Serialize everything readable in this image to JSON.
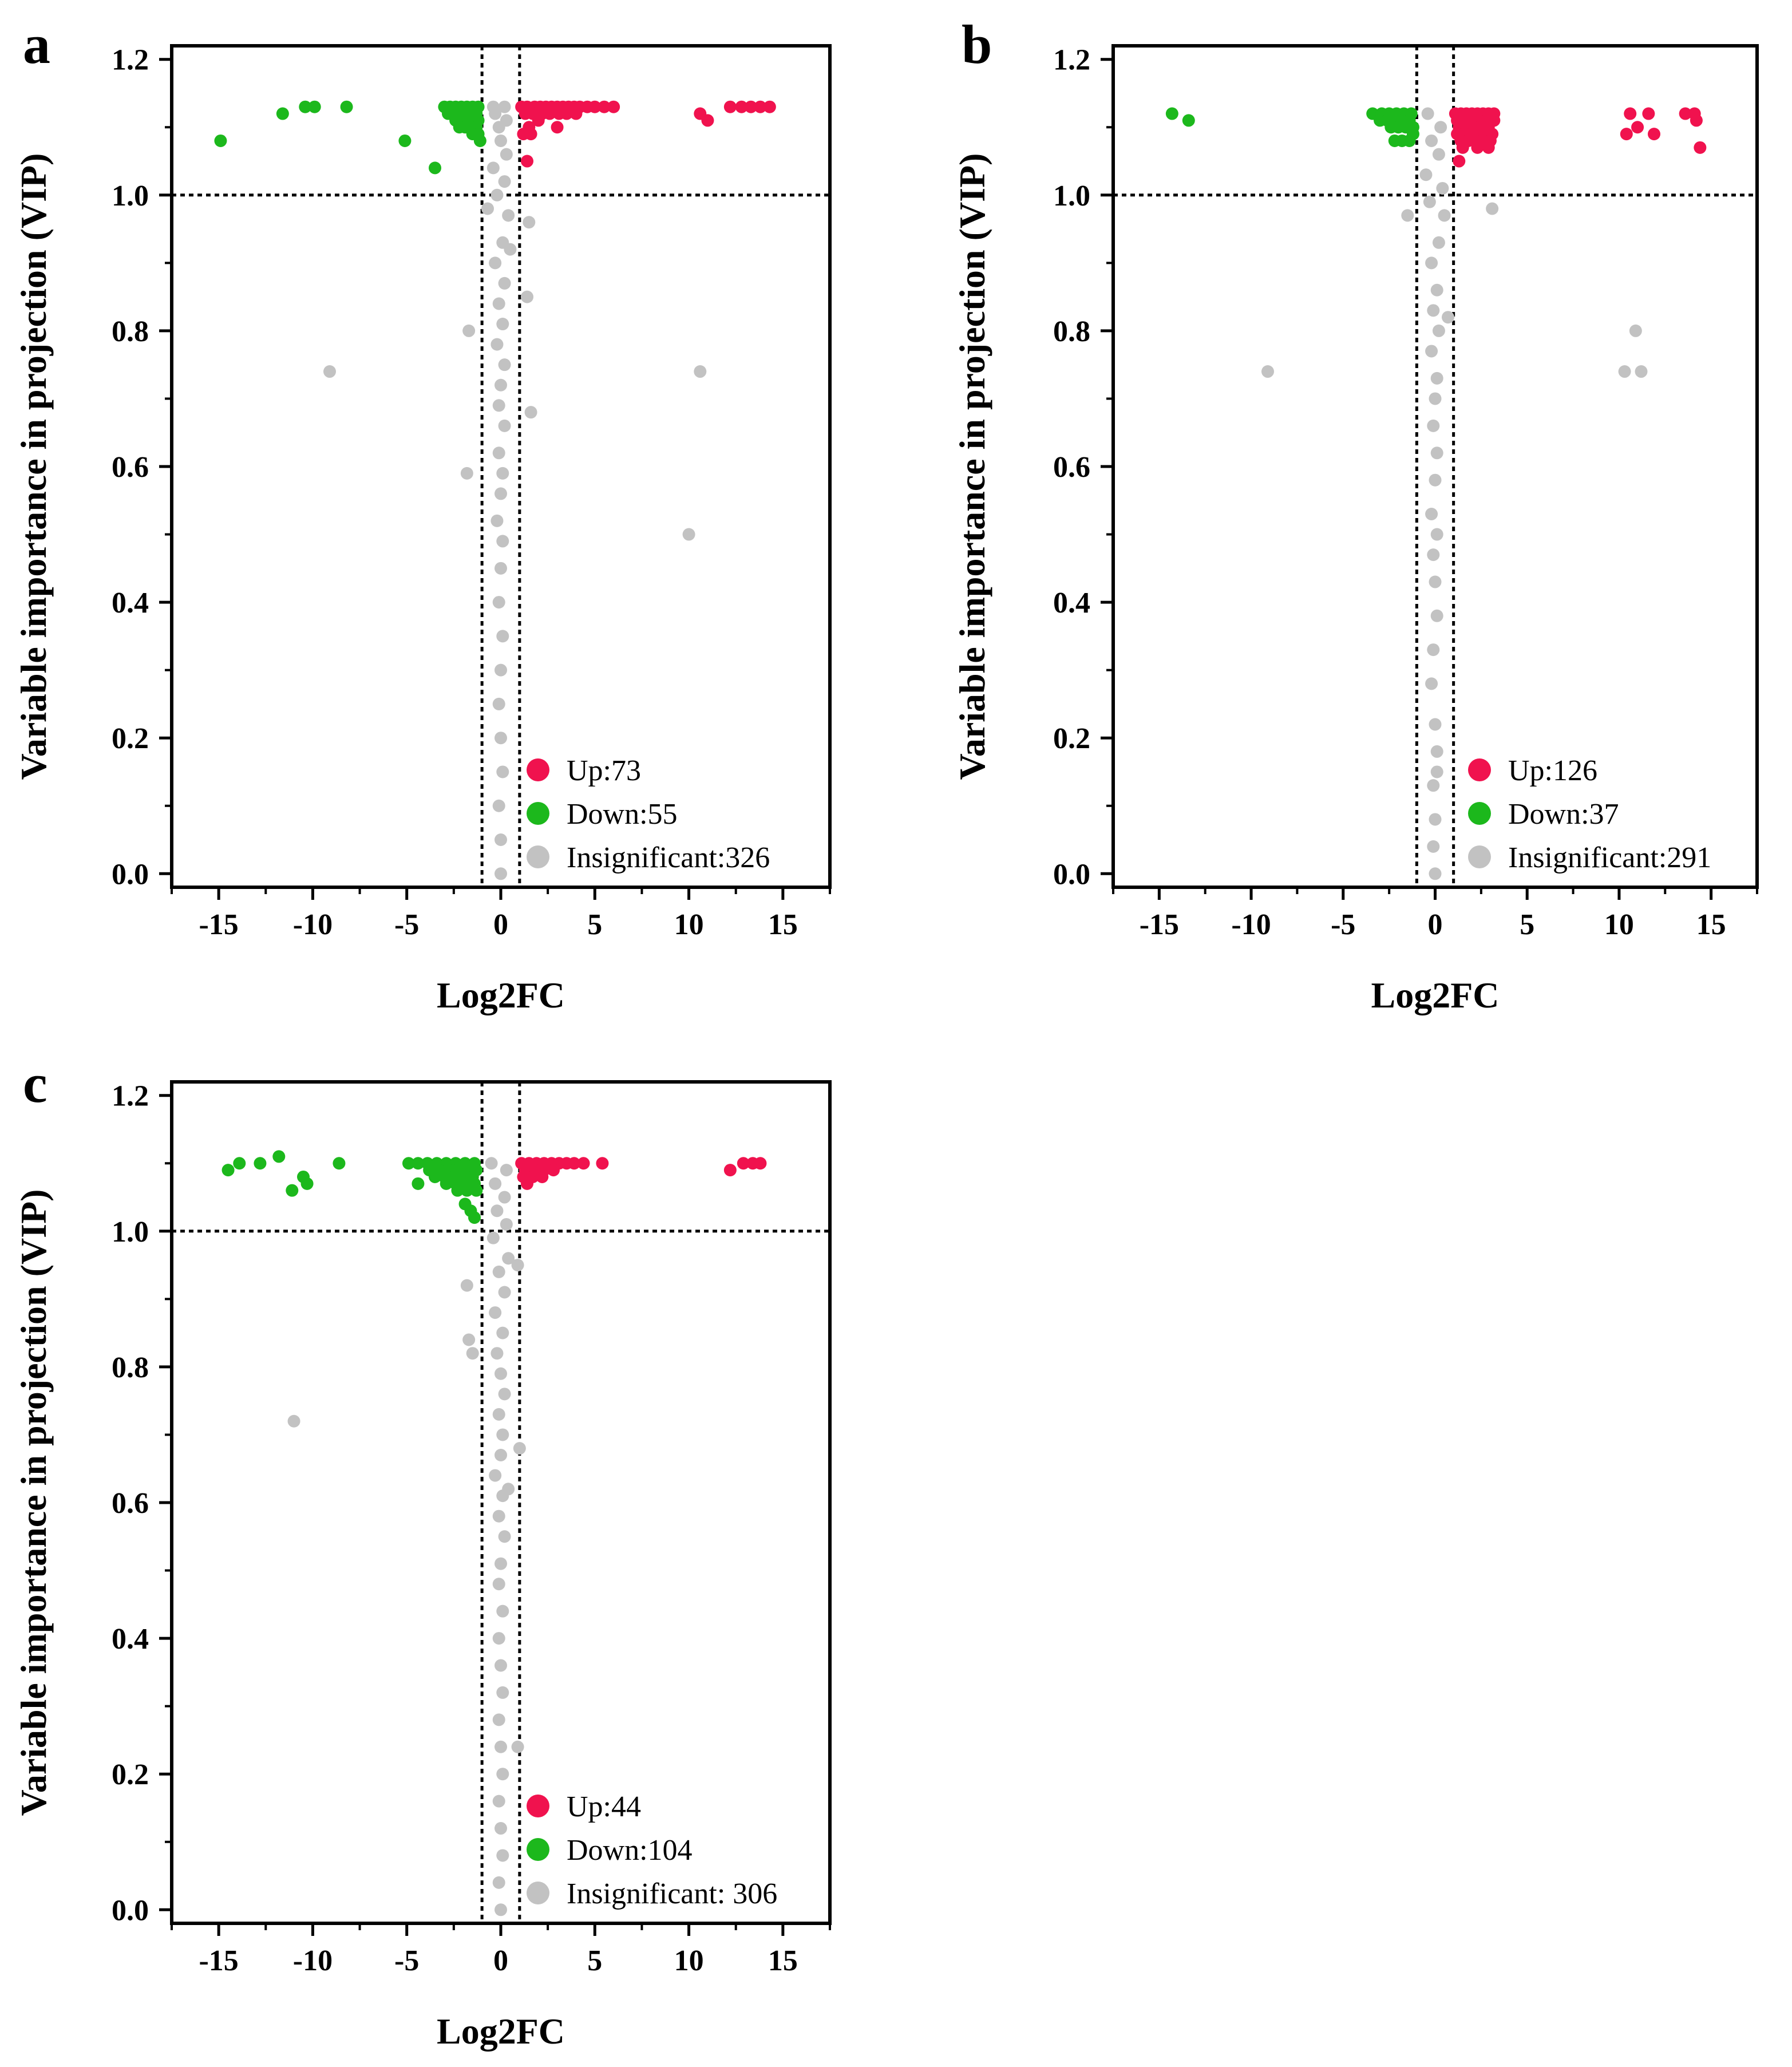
{
  "colors": {
    "up": "#f0124e",
    "down": "#1cb81c",
    "insignificant": "#c2c2c2",
    "axis": "#000000"
  },
  "chart_data": [
    {
      "type": "scatter",
      "panel_label": "a",
      "xlabel": "Log2FC",
      "ylabel": "Variable importance in projection (VIP)",
      "xlim": [
        -17.5,
        17.5
      ],
      "ylim": [
        -0.02,
        1.22
      ],
      "xticks": [
        "-15",
        "-10",
        "-5",
        "0",
        "5",
        "10",
        "15"
      ],
      "yticks": [
        "0.0",
        "0.2",
        "0.4",
        "0.6",
        "0.8",
        "1.0",
        "1.2"
      ],
      "thresholds": {
        "vip": 1.0,
        "log2fc": [
          -1,
          1
        ]
      },
      "legend": [
        {
          "key": "up",
          "label": "Up:73"
        },
        {
          "key": "down",
          "label": "Down:55"
        },
        {
          "key": "insignificant",
          "label": "Insignificant:326"
        }
      ],
      "series": [
        {
          "name": "Up",
          "color_key": "up",
          "x": [
            1.1,
            1.4,
            1.8,
            2.1,
            2.4,
            2.7,
            3.0,
            3.3,
            3.6,
            3.9,
            4.2,
            4.6,
            5.0,
            5.5,
            6.0,
            1.3,
            1.7,
            2.2,
            2.6,
            3.1,
            3.5,
            4.0,
            2.0,
            3.0,
            1.5,
            1.2,
            1.6,
            1.4,
            10.6,
            11.0,
            12.2,
            12.8,
            13.3,
            13.8,
            14.3
          ],
          "y": [
            1.13,
            1.13,
            1.13,
            1.13,
            1.13,
            1.13,
            1.13,
            1.13,
            1.13,
            1.13,
            1.13,
            1.13,
            1.13,
            1.13,
            1.13,
            1.12,
            1.12,
            1.12,
            1.12,
            1.12,
            1.12,
            1.12,
            1.11,
            1.1,
            1.1,
            1.09,
            1.09,
            1.05,
            1.12,
            1.11,
            1.13,
            1.13,
            1.13,
            1.13,
            1.13
          ]
        },
        {
          "name": "Down",
          "color_key": "down",
          "x": [
            -14.9,
            -11.6,
            -10.4,
            -9.9,
            -8.2,
            -5.1,
            -3.5,
            -1.2,
            -1.5,
            -1.8,
            -2.1,
            -2.4,
            -2.7,
            -3.0,
            -1.3,
            -1.6,
            -1.9,
            -2.2,
            -2.5,
            -2.8,
            -1.2,
            -1.5,
            -1.8,
            -2.1,
            -2.4,
            -1.3,
            -1.6,
            -1.9,
            -2.2,
            -1.2,
            -1.5,
            -1.1
          ],
          "y": [
            1.08,
            1.12,
            1.13,
            1.13,
            1.13,
            1.08,
            1.04,
            1.13,
            1.13,
            1.13,
            1.13,
            1.13,
            1.13,
            1.13,
            1.12,
            1.12,
            1.12,
            1.12,
            1.12,
            1.12,
            1.11,
            1.11,
            1.11,
            1.11,
            1.11,
            1.1,
            1.1,
            1.1,
            1.1,
            1.09,
            1.09,
            1.08
          ]
        },
        {
          "name": "Insignificant",
          "color_key": "insignificant",
          "x": [
            -0.4,
            0.2,
            -0.3,
            0.3,
            -0.1,
            0.0,
            0.3,
            -0.4,
            0.2,
            -0.2,
            0.4,
            0.1,
            -0.3,
            0.2,
            -0.1,
            0.1,
            -0.2,
            0.2,
            0.0,
            -0.1,
            0.2,
            -0.1,
            0.1,
            0.0,
            -0.2,
            0.1,
            0.0,
            -0.1,
            0.1,
            0.0,
            -0.1,
            0.0,
            0.1,
            -0.1,
            0.0,
            0.0,
            -0.7,
            0.5,
            1.4,
            -1.7,
            -9.1,
            1.6,
            1.5,
            -1.8,
            10.0,
            10.6
          ],
          "y": [
            1.13,
            1.13,
            1.12,
            1.11,
            1.1,
            1.08,
            1.06,
            1.04,
            1.02,
            1.0,
            0.97,
            0.93,
            0.9,
            0.87,
            0.84,
            0.81,
            0.78,
            0.75,
            0.72,
            0.69,
            0.66,
            0.62,
            0.59,
            0.56,
            0.52,
            0.49,
            0.45,
            0.4,
            0.35,
            0.3,
            0.25,
            0.2,
            0.15,
            0.1,
            0.05,
            0.0,
            0.98,
            0.92,
            0.85,
            0.8,
            0.74,
            0.68,
            0.96,
            0.59,
            0.5,
            0.74
          ]
        }
      ]
    },
    {
      "type": "scatter",
      "panel_label": "b",
      "xlabel": "Log2FC",
      "ylabel": "Variable importance in projection (VIP)",
      "xlim": [
        -17.5,
        17.5
      ],
      "ylim": [
        -0.02,
        1.22
      ],
      "xticks": [
        "-15",
        "-10",
        "-5",
        "0",
        "5",
        "10",
        "15"
      ],
      "yticks": [
        "0.0",
        "0.2",
        "0.4",
        "0.6",
        "0.8",
        "1.0",
        "1.2"
      ],
      "thresholds": {
        "vip": 1.0,
        "log2fc": [
          -1,
          1
        ]
      },
      "legend": [
        {
          "key": "up",
          "label": "Up:126"
        },
        {
          "key": "down",
          "label": "Down:37"
        },
        {
          "key": "insignificant",
          "label": "Insignificant:291"
        }
      ],
      "series": [
        {
          "name": "Up",
          "color_key": "up",
          "x": [
            1.1,
            1.4,
            1.7,
            2.0,
            2.3,
            2.6,
            2.9,
            3.2,
            1.2,
            1.6,
            2.0,
            2.4,
            2.8,
            3.2,
            1.3,
            1.7,
            2.1,
            2.5,
            2.9,
            1.2,
            1.6,
            2.0,
            2.4,
            2.8,
            3.1,
            1.4,
            1.8,
            2.2,
            2.6,
            3.0,
            1.5,
            2.3,
            2.9,
            1.3,
            10.6,
            11.0,
            11.6,
            10.4,
            11.9,
            13.6,
            14.1,
            14.4,
            14.2
          ],
          "y": [
            1.12,
            1.12,
            1.12,
            1.12,
            1.12,
            1.12,
            1.12,
            1.12,
            1.11,
            1.11,
            1.11,
            1.11,
            1.11,
            1.11,
            1.1,
            1.1,
            1.1,
            1.1,
            1.1,
            1.09,
            1.09,
            1.09,
            1.09,
            1.09,
            1.09,
            1.08,
            1.08,
            1.08,
            1.08,
            1.08,
            1.07,
            1.07,
            1.07,
            1.05,
            1.12,
            1.1,
            1.12,
            1.09,
            1.09,
            1.12,
            1.12,
            1.07,
            1.11
          ]
        },
        {
          "name": "Down",
          "color_key": "down",
          "x": [
            -14.3,
            -13.4,
            -3.4,
            -2.9,
            -2.5,
            -2.1,
            -1.7,
            -1.3,
            -3.0,
            -2.6,
            -2.2,
            -1.8,
            -1.4,
            -2.4,
            -2.0,
            -1.6,
            -1.2,
            -2.2,
            -1.8,
            -1.4,
            -1.2
          ],
          "y": [
            1.12,
            1.11,
            1.12,
            1.12,
            1.12,
            1.12,
            1.12,
            1.12,
            1.11,
            1.11,
            1.11,
            1.11,
            1.11,
            1.1,
            1.1,
            1.1,
            1.1,
            1.08,
            1.08,
            1.08,
            1.09
          ]
        },
        {
          "name": "Insignificant",
          "color_key": "insignificant",
          "x": [
            -0.4,
            0.3,
            -0.2,
            0.2,
            -0.5,
            0.4,
            -0.3,
            0.5,
            -1.5,
            0.2,
            -0.2,
            0.1,
            -0.1,
            0.2,
            -0.2,
            0.1,
            0.0,
            -0.1,
            0.1,
            0.0,
            -0.2,
            0.1,
            -0.1,
            0.0,
            0.1,
            -0.1,
            -0.2,
            0.0,
            0.1,
            -0.1,
            0.0,
            -0.1,
            0.0,
            0.1,
            3.1,
            0.7,
            -9.1,
            10.3,
            11.2,
            10.9
          ],
          "y": [
            1.12,
            1.1,
            1.08,
            1.06,
            1.03,
            1.01,
            0.99,
            0.97,
            0.97,
            0.93,
            0.9,
            0.86,
            0.83,
            0.8,
            0.77,
            0.73,
            0.7,
            0.66,
            0.62,
            0.58,
            0.53,
            0.5,
            0.47,
            0.43,
            0.38,
            0.33,
            0.28,
            0.22,
            0.18,
            0.13,
            0.08,
            0.04,
            0.0,
            0.15,
            0.98,
            0.82,
            0.74,
            0.74,
            0.74,
            0.8
          ]
        }
      ]
    },
    {
      "type": "scatter",
      "panel_label": "c",
      "xlabel": "Log2FC",
      "ylabel": "Variable importance in projection (VIP)",
      "xlim": [
        -17.5,
        17.5
      ],
      "ylim": [
        -0.02,
        1.22
      ],
      "xticks": [
        "-15",
        "-10",
        "-5",
        "0",
        "5",
        "10",
        "15"
      ],
      "yticks": [
        "0.0",
        "0.2",
        "0.4",
        "0.6",
        "0.8",
        "1.0",
        "1.2"
      ],
      "thresholds": {
        "vip": 1.0,
        "log2fc": [
          -1,
          1
        ]
      },
      "legend": [
        {
          "key": "up",
          "label": "Up:44"
        },
        {
          "key": "down",
          "label": "Down:104"
        },
        {
          "key": "insignificant",
          "label": "Insignificant: 306"
        }
      ],
      "series": [
        {
          "name": "Up",
          "color_key": "up",
          "x": [
            1.1,
            1.5,
            1.9,
            2.3,
            2.7,
            3.1,
            3.5,
            3.9,
            4.4,
            1.3,
            1.8,
            2.3,
            2.8,
            1.2,
            1.7,
            2.2,
            1.4,
            5.4,
            12.2,
            12.9,
            13.4,
            13.8
          ],
          "y": [
            1.1,
            1.1,
            1.1,
            1.1,
            1.1,
            1.1,
            1.1,
            1.1,
            1.1,
            1.09,
            1.09,
            1.09,
            1.09,
            1.08,
            1.08,
            1.08,
            1.07,
            1.1,
            1.09,
            1.1,
            1.1,
            1.1
          ]
        },
        {
          "name": "Down",
          "color_key": "down",
          "x": [
            -14.5,
            -13.9,
            -12.8,
            -11.8,
            -11.1,
            -10.5,
            -10.3,
            -8.6,
            -4.9,
            -4.4,
            -3.9,
            -3.4,
            -2.9,
            -2.4,
            -1.9,
            -1.4,
            -4.4,
            -3.8,
            -3.3,
            -2.8,
            -2.3,
            -1.8,
            -1.3,
            -3.5,
            -3.0,
            -2.5,
            -2.0,
            -1.5,
            -2.9,
            -2.4,
            -1.9,
            -1.4,
            -2.3,
            -1.8,
            -1.3,
            -1.9,
            -1.6,
            -1.4
          ],
          "y": [
            1.09,
            1.1,
            1.1,
            1.11,
            1.06,
            1.08,
            1.07,
            1.1,
            1.1,
            1.1,
            1.1,
            1.1,
            1.1,
            1.1,
            1.1,
            1.1,
            1.07,
            1.09,
            1.09,
            1.09,
            1.09,
            1.09,
            1.09,
            1.08,
            1.08,
            1.08,
            1.08,
            1.08,
            1.07,
            1.07,
            1.07,
            1.07,
            1.06,
            1.06,
            1.06,
            1.04,
            1.03,
            1.02
          ]
        },
        {
          "name": "Insignificant",
          "color_key": "insignificant",
          "x": [
            -0.5,
            0.3,
            -0.3,
            0.2,
            -0.2,
            0.3,
            -0.4,
            0.4,
            -0.1,
            0.2,
            -0.3,
            0.1,
            -0.2,
            0.0,
            0.2,
            -0.1,
            0.1,
            0.0,
            -0.3,
            0.1,
            -0.1,
            0.2,
            0.0,
            -0.1,
            0.1,
            -0.1,
            0.0,
            0.1,
            -0.1,
            0.0,
            0.1,
            -0.1,
            0.0,
            0.1,
            -0.1,
            0.0,
            -1.8,
            -1.7,
            -1.5,
            1.0,
            0.9,
            -11.0,
            0.9,
            0.4
          ],
          "y": [
            1.1,
            1.09,
            1.07,
            1.05,
            1.03,
            1.01,
            0.99,
            0.96,
            0.94,
            0.91,
            0.88,
            0.85,
            0.82,
            0.79,
            0.76,
            0.73,
            0.7,
            0.67,
            0.64,
            0.61,
            0.58,
            0.55,
            0.51,
            0.48,
            0.44,
            0.4,
            0.36,
            0.32,
            0.28,
            0.24,
            0.2,
            0.16,
            0.12,
            0.08,
            0.04,
            0.0,
            0.92,
            0.84,
            0.82,
            0.68,
            0.95,
            0.72,
            0.24,
            0.62
          ]
        }
      ]
    }
  ]
}
